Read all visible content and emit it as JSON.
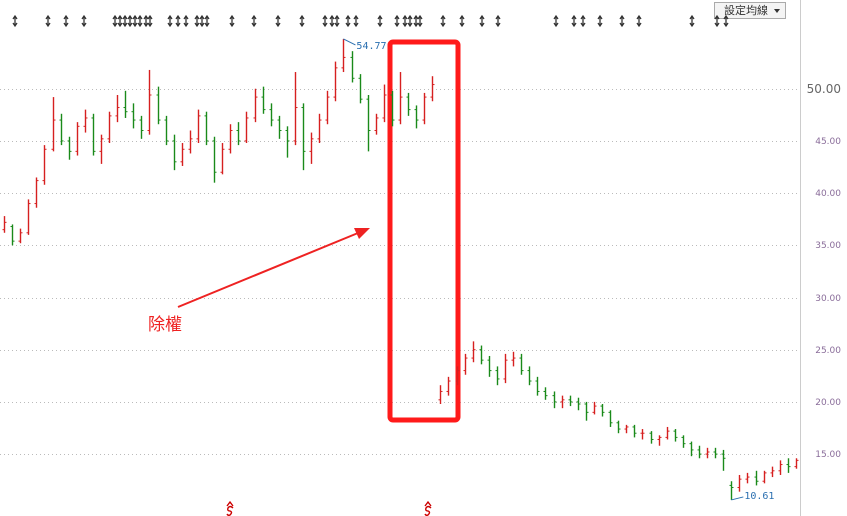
{
  "chart_data": {
    "type": "ohlc",
    "up_color": "#d62020",
    "down_color": "#1a8a1a",
    "ylim": [
      9.07,
      58.5
    ],
    "yticks": [
      {
        "value": 15,
        "label": "15.00"
      },
      {
        "value": 20,
        "label": "20.00"
      },
      {
        "value": 25,
        "label": "25.00"
      },
      {
        "value": 30,
        "label": "30.00"
      },
      {
        "value": 35,
        "label": "35.00"
      },
      {
        "value": 40,
        "label": "40.00"
      },
      {
        "value": 45,
        "label": "45.00"
      },
      {
        "value": 50,
        "label": "50.00"
      }
    ],
    "grid": true,
    "high_label": "54.77",
    "low_label": "10.61",
    "callout": "除權",
    "button": "設定均線",
    "bars": [
      [
        36.5,
        37.8,
        36.2,
        37.2
      ],
      [
        36.8,
        37.0,
        35.0,
        35.4
      ],
      [
        35.4,
        36.6,
        35.2,
        36.2
      ],
      [
        36.2,
        39.4,
        36.0,
        39.0
      ],
      [
        39.0,
        41.5,
        38.6,
        41.2
      ],
      [
        41.2,
        44.6,
        40.8,
        44.2
      ],
      [
        44.2,
        49.2,
        44.0,
        47.0
      ],
      [
        47.0,
        47.6,
        44.6,
        45.0
      ],
      [
        45.0,
        45.4,
        43.2,
        44.0
      ],
      [
        44.0,
        46.8,
        43.6,
        46.4
      ],
      [
        46.4,
        48.0,
        45.8,
        47.2
      ],
      [
        47.2,
        47.6,
        43.6,
        44.0
      ],
      [
        44.0,
        45.6,
        42.8,
        45.2
      ],
      [
        45.2,
        47.8,
        44.8,
        47.4
      ],
      [
        47.4,
        49.4,
        46.8,
        48.2
      ],
      [
        48.2,
        49.8,
        47.2,
        47.8
      ],
      [
        47.8,
        48.6,
        46.2,
        47.0
      ],
      [
        47.0,
        47.4,
        45.2,
        46.0
      ],
      [
        46.0,
        51.8,
        45.6,
        49.4
      ],
      [
        49.4,
        50.2,
        46.6,
        47.0
      ],
      [
        47.0,
        47.4,
        44.6,
        45.0
      ],
      [
        45.0,
        45.6,
        42.2,
        43.0
      ],
      [
        43.0,
        44.8,
        42.6,
        44.2
      ],
      [
        44.2,
        46.0,
        43.8,
        45.2
      ],
      [
        45.2,
        48.0,
        44.8,
        47.4
      ],
      [
        47.4,
        47.8,
        44.6,
        45.0
      ],
      [
        45.0,
        45.4,
        41.0,
        42.0
      ],
      [
        42.0,
        44.8,
        41.8,
        44.2
      ],
      [
        44.2,
        46.6,
        43.8,
        46.0
      ],
      [
        46.0,
        46.8,
        44.6,
        45.0
      ],
      [
        45.0,
        47.8,
        44.8,
        47.2
      ],
      [
        47.2,
        50.0,
        46.8,
        49.2
      ],
      [
        49.2,
        50.2,
        47.6,
        48.0
      ],
      [
        48.0,
        48.6,
        46.4,
        47.0
      ],
      [
        47.0,
        47.4,
        45.2,
        46.0
      ],
      [
        46.0,
        46.4,
        43.4,
        45.0
      ],
      [
        45.0,
        51.6,
        44.6,
        48.2
      ],
      [
        48.2,
        48.6,
        42.2,
        44.0
      ],
      [
        44.0,
        45.8,
        42.8,
        45.2
      ],
      [
        45.2,
        47.6,
        44.8,
        47.0
      ],
      [
        47.0,
        49.8,
        46.6,
        49.2
      ],
      [
        49.2,
        52.6,
        48.8,
        52.0
      ],
      [
        52.0,
        54.77,
        51.6,
        53.0
      ],
      [
        53.0,
        53.6,
        50.6,
        51.0
      ],
      [
        51.0,
        51.4,
        48.6,
        49.0
      ],
      [
        49.0,
        49.4,
        44.0,
        46.0
      ],
      [
        46.0,
        47.6,
        45.6,
        47.2
      ],
      [
        47.2,
        50.4,
        46.8,
        49.4
      ],
      [
        49.4,
        49.8,
        46.4,
        47.0
      ],
      [
        47.0,
        51.6,
        46.6,
        49.2
      ],
      [
        49.2,
        49.6,
        47.4,
        48.0
      ],
      [
        48.0,
        48.4,
        46.2,
        47.0
      ],
      [
        47.0,
        49.6,
        46.6,
        49.2
      ],
      [
        49.2,
        51.2,
        48.8,
        50.4
      ],
      [
        20.2,
        21.6,
        19.8,
        21.0
      ],
      [
        21.0,
        22.4,
        20.6,
        22.0
      ],
      [
        22.0,
        23.4,
        21.6,
        23.0
      ],
      [
        23.0,
        24.6,
        22.6,
        24.2
      ],
      [
        24.2,
        25.8,
        23.8,
        25.0
      ],
      [
        25.0,
        25.4,
        23.6,
        24.0
      ],
      [
        24.0,
        24.4,
        22.4,
        23.0
      ],
      [
        23.0,
        23.4,
        21.6,
        22.2
      ],
      [
        22.2,
        24.6,
        21.8,
        24.0
      ],
      [
        24.0,
        24.8,
        23.4,
        24.2
      ],
      [
        24.2,
        24.6,
        22.6,
        23.0
      ],
      [
        23.0,
        23.4,
        21.6,
        22.0
      ],
      [
        22.0,
        22.4,
        20.6,
        21.0
      ],
      [
        21.0,
        21.4,
        20.2,
        20.6
      ],
      [
        20.6,
        21.0,
        19.4,
        20.0
      ],
      [
        20.0,
        20.6,
        19.4,
        20.2
      ],
      [
        20.2,
        20.6,
        19.6,
        20.0
      ],
      [
        20.0,
        20.4,
        19.2,
        19.8
      ],
      [
        19.8,
        20.0,
        18.2,
        19.0
      ],
      [
        19.0,
        20.0,
        18.8,
        19.6
      ],
      [
        19.6,
        19.8,
        18.6,
        19.0
      ],
      [
        19.0,
        19.2,
        17.6,
        18.0
      ],
      [
        18.0,
        18.2,
        17.0,
        17.4
      ],
      [
        17.4,
        17.8,
        17.0,
        17.6
      ],
      [
        17.6,
        17.8,
        16.6,
        17.0
      ],
      [
        17.0,
        17.4,
        16.4,
        17.0
      ],
      [
        17.0,
        17.2,
        16.0,
        16.4
      ],
      [
        16.4,
        16.8,
        15.8,
        16.6
      ],
      [
        16.6,
        17.6,
        16.4,
        17.2
      ],
      [
        17.2,
        17.4,
        16.2,
        16.6
      ],
      [
        16.6,
        16.8,
        15.6,
        16.0
      ],
      [
        16.0,
        16.2,
        14.8,
        15.4
      ],
      [
        15.4,
        15.8,
        14.6,
        15.0
      ],
      [
        15.0,
        15.6,
        14.6,
        15.2
      ],
      [
        15.2,
        15.6,
        14.6,
        15.0
      ],
      [
        15.0,
        15.4,
        13.4,
        14.6
      ],
      [
        12.0,
        12.4,
        10.61,
        11.8
      ],
      [
        11.8,
        13.0,
        11.4,
        12.6
      ],
      [
        12.6,
        13.2,
        12.2,
        12.8
      ],
      [
        12.8,
        13.4,
        12.0,
        12.4
      ],
      [
        12.4,
        13.4,
        12.2,
        13.2
      ],
      [
        13.2,
        13.8,
        12.8,
        13.4
      ],
      [
        13.4,
        14.4,
        13.0,
        14.0
      ],
      [
        14.0,
        14.6,
        13.2,
        13.8
      ],
      [
        13.8,
        14.6,
        13.6,
        14.4
      ]
    ]
  }
}
